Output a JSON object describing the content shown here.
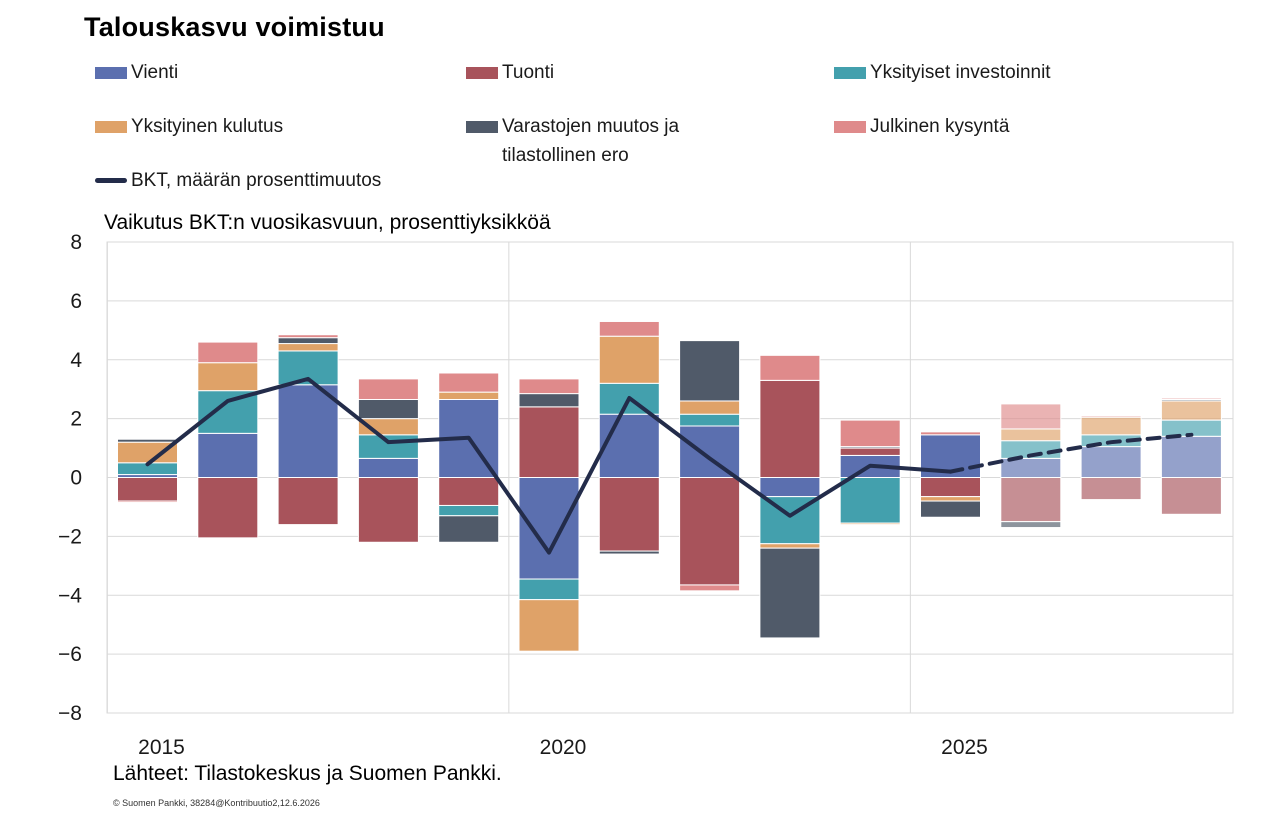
{
  "title": "Talouskasvu voimistuu",
  "legend": [
    {
      "label": "Vienti",
      "color": "#5b6faf"
    },
    {
      "label": "Tuonti",
      "color": "#a8535b"
    },
    {
      "label": "Yksityiset investoinnit",
      "color": "#43a0ad"
    },
    {
      "label": "Yksityinen kulutus",
      "color": "#dfa268"
    },
    {
      "label": "Varastojen muutos ja\ntilastollinen ero",
      "color": "#505a69"
    },
    {
      "label": "Julkinen kysyntä",
      "color": "#df8a8b"
    },
    {
      "label": "BKT, määrän prosenttimuutos",
      "color": "#232c4a"
    }
  ],
  "subtitle": "Vaikutus BKT:n vuosikasvuun, prosenttiyksikköä",
  "source": "Lähteet: Tilastokeskus ja Suomen Pankki.",
  "copyright": "© Suomen Pankki, 38284@Kontribuutio2,12.6.2026",
  "chart_data": {
    "type": "bar",
    "stacked": true,
    "years": [
      2015,
      2016,
      2017,
      2018,
      2019,
      2020,
      2021,
      2022,
      2023,
      2024,
      2025,
      2026,
      2027,
      2028
    ],
    "forecast_start": 2025,
    "ylim": [
      -8,
      8
    ],
    "yticks": [
      -8,
      -6,
      -4,
      -2,
      0,
      2,
      4,
      6,
      8
    ],
    "ytick_labels": [
      "−8",
      "−6",
      "−4",
      "−2",
      "0",
      "2",
      "4",
      "6",
      "8"
    ],
    "xticks": [
      2015,
      2020,
      2025
    ],
    "xtick_labels": [
      "2015",
      "2020",
      "2025"
    ],
    "grid": true,
    "series": [
      {
        "name": "Vienti",
        "color": "#5b6faf",
        "values": [
          0.1,
          1.5,
          3.15,
          0.65,
          2.65,
          -3.45,
          2.15,
          1.75,
          -0.65,
          0.75,
          1.45,
          0.65,
          1.05,
          1.4
        ]
      },
      {
        "name": "Tuonti",
        "color": "#a8535b",
        "values": [
          -0.8,
          -2.05,
          -1.6,
          -2.2,
          -0.95,
          2.4,
          -2.5,
          -3.65,
          3.3,
          0.25,
          -0.65,
          -1.5,
          -0.75,
          -1.25
        ]
      },
      {
        "name": "Yksityiset investoinnit",
        "color": "#43a0ad",
        "values": [
          0.4,
          1.45,
          1.15,
          0.8,
          -0.35,
          -0.7,
          1.05,
          0.4,
          -1.6,
          -1.55,
          0,
          0.6,
          0.4,
          0.55
        ]
      },
      {
        "name": "Yksityinen kulutus",
        "color": "#dfa268",
        "values": [
          0.7,
          0.95,
          0.25,
          0.55,
          0.25,
          -1.75,
          1.6,
          0.45,
          -0.15,
          -0.05,
          -0.15,
          0.4,
          0.6,
          0.65
        ]
      },
      {
        "name": "Varastojen muutos ja tilastollinen ero",
        "color": "#505a69",
        "values": [
          0.1,
          0,
          0.2,
          0.65,
          -0.9,
          0.45,
          -0.1,
          2.05,
          -3.05,
          0.05,
          -0.55,
          -0.2,
          0,
          0.05
        ]
      },
      {
        "name": "Julkinen kysyntä",
        "color": "#df8a8b",
        "values": [
          -0.05,
          0.7,
          0.1,
          0.7,
          0.65,
          0.5,
          0.5,
          -0.2,
          0.85,
          0.9,
          0.1,
          0.85,
          0.05,
          0.05
        ]
      }
    ],
    "line": {
      "name": "BKT, määrän prosenttimuutos",
      "color": "#232c4a",
      "values": [
        0.45,
        2.6,
        3.35,
        1.2,
        1.35,
        -2.55,
        2.7,
        0.65,
        -1.3,
        0.4,
        0.2,
        0.75,
        1.2,
        1.45
      ]
    }
  }
}
